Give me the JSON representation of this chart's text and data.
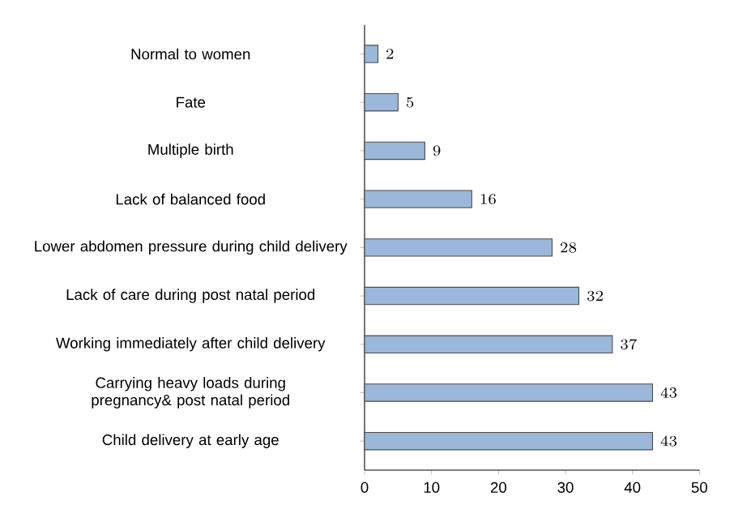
{
  "chart_data": {
    "type": "bar",
    "orientation": "horizontal",
    "categories": [
      "Normal to women",
      "Fate",
      "Multiple birth",
      "Lack of balanced food",
      "Lower abdomen pressure during child delivery",
      "Lack of care during post natal period",
      "Working immediately after child delivery",
      "Carrying heavy loads during pregnancy& post natal period",
      "Child delivery at early age"
    ],
    "values": [
      2,
      5,
      9,
      16,
      28,
      32,
      37,
      43,
      43
    ],
    "color": "#9bb7d9",
    "xlim": [
      0,
      50
    ],
    "xticks": [
      0,
      10,
      20,
      30,
      40,
      50
    ],
    "data_labels": true,
    "grid": false
  }
}
